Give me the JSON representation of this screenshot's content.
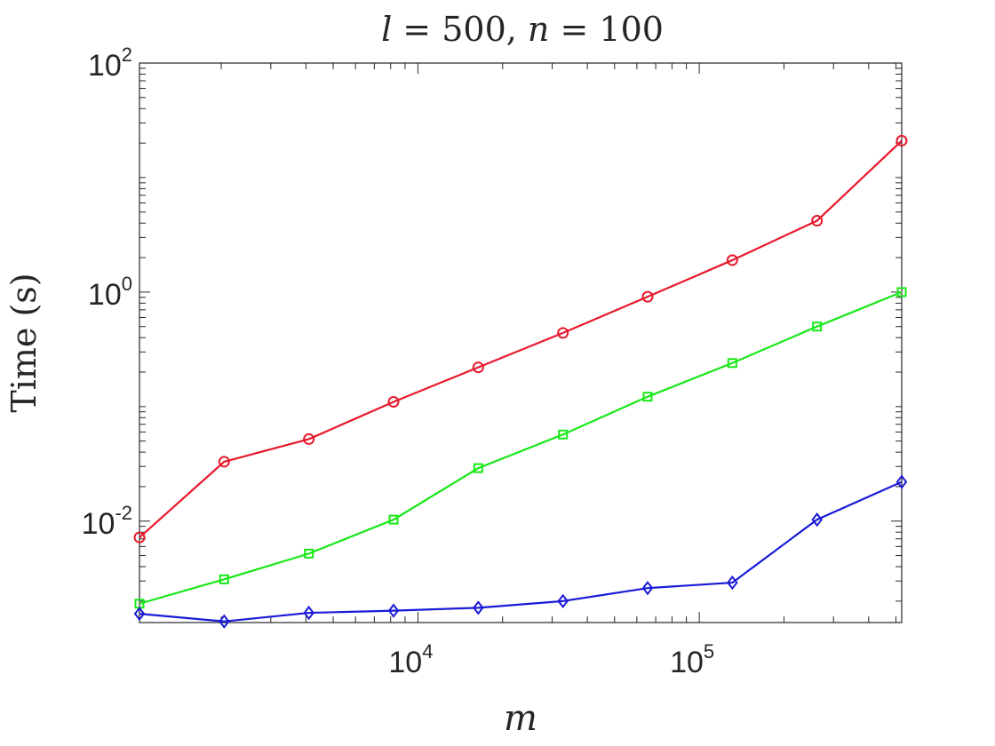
{
  "chart_data": {
    "type": "line",
    "title_parts": [
      {
        "text": "l",
        "italic": true
      },
      {
        "text": " = 500, ",
        "italic": false
      },
      {
        "text": "n",
        "italic": true
      },
      {
        "text": " = 100",
        "italic": false
      }
    ],
    "xlabel": "m",
    "ylabel": "Time (s)",
    "x_scale": "log",
    "y_scale": "log",
    "xlim": [
      1024,
      524288
    ],
    "ylim": [
      0.0013,
      100
    ],
    "x_ticks": [
      {
        "value": 10000,
        "base": "10",
        "exp": "4"
      },
      {
        "value": 100000,
        "base": "10",
        "exp": "5"
      }
    ],
    "y_ticks": [
      {
        "value": 100,
        "base": "10",
        "exp": "2"
      },
      {
        "value": 1,
        "base": "10",
        "exp": "0"
      },
      {
        "value": 0.01,
        "base": "10",
        "exp": "-2"
      }
    ],
    "grid": false,
    "x": [
      1024,
      2048,
      4096,
      8192,
      16384,
      32768,
      65536,
      131072,
      262144,
      524288
    ],
    "series": [
      {
        "color": "#e8192c",
        "marker": "circle",
        "values": [
          0.0072,
          0.033,
          0.052,
          0.11,
          0.22,
          0.44,
          0.91,
          1.9,
          4.2,
          21
        ]
      },
      {
        "color": "#18e818",
        "marker": "square",
        "values": [
          0.0019,
          0.0031,
          0.0052,
          0.0103,
          0.029,
          0.057,
          0.122,
          0.24,
          0.5,
          1.0
        ]
      },
      {
        "color": "#1a1ad8",
        "marker": "diamond",
        "values": [
          0.00155,
          0.00133,
          0.00158,
          0.00165,
          0.00175,
          0.002,
          0.0026,
          0.0029,
          0.0103,
          0.022
        ]
      }
    ]
  }
}
